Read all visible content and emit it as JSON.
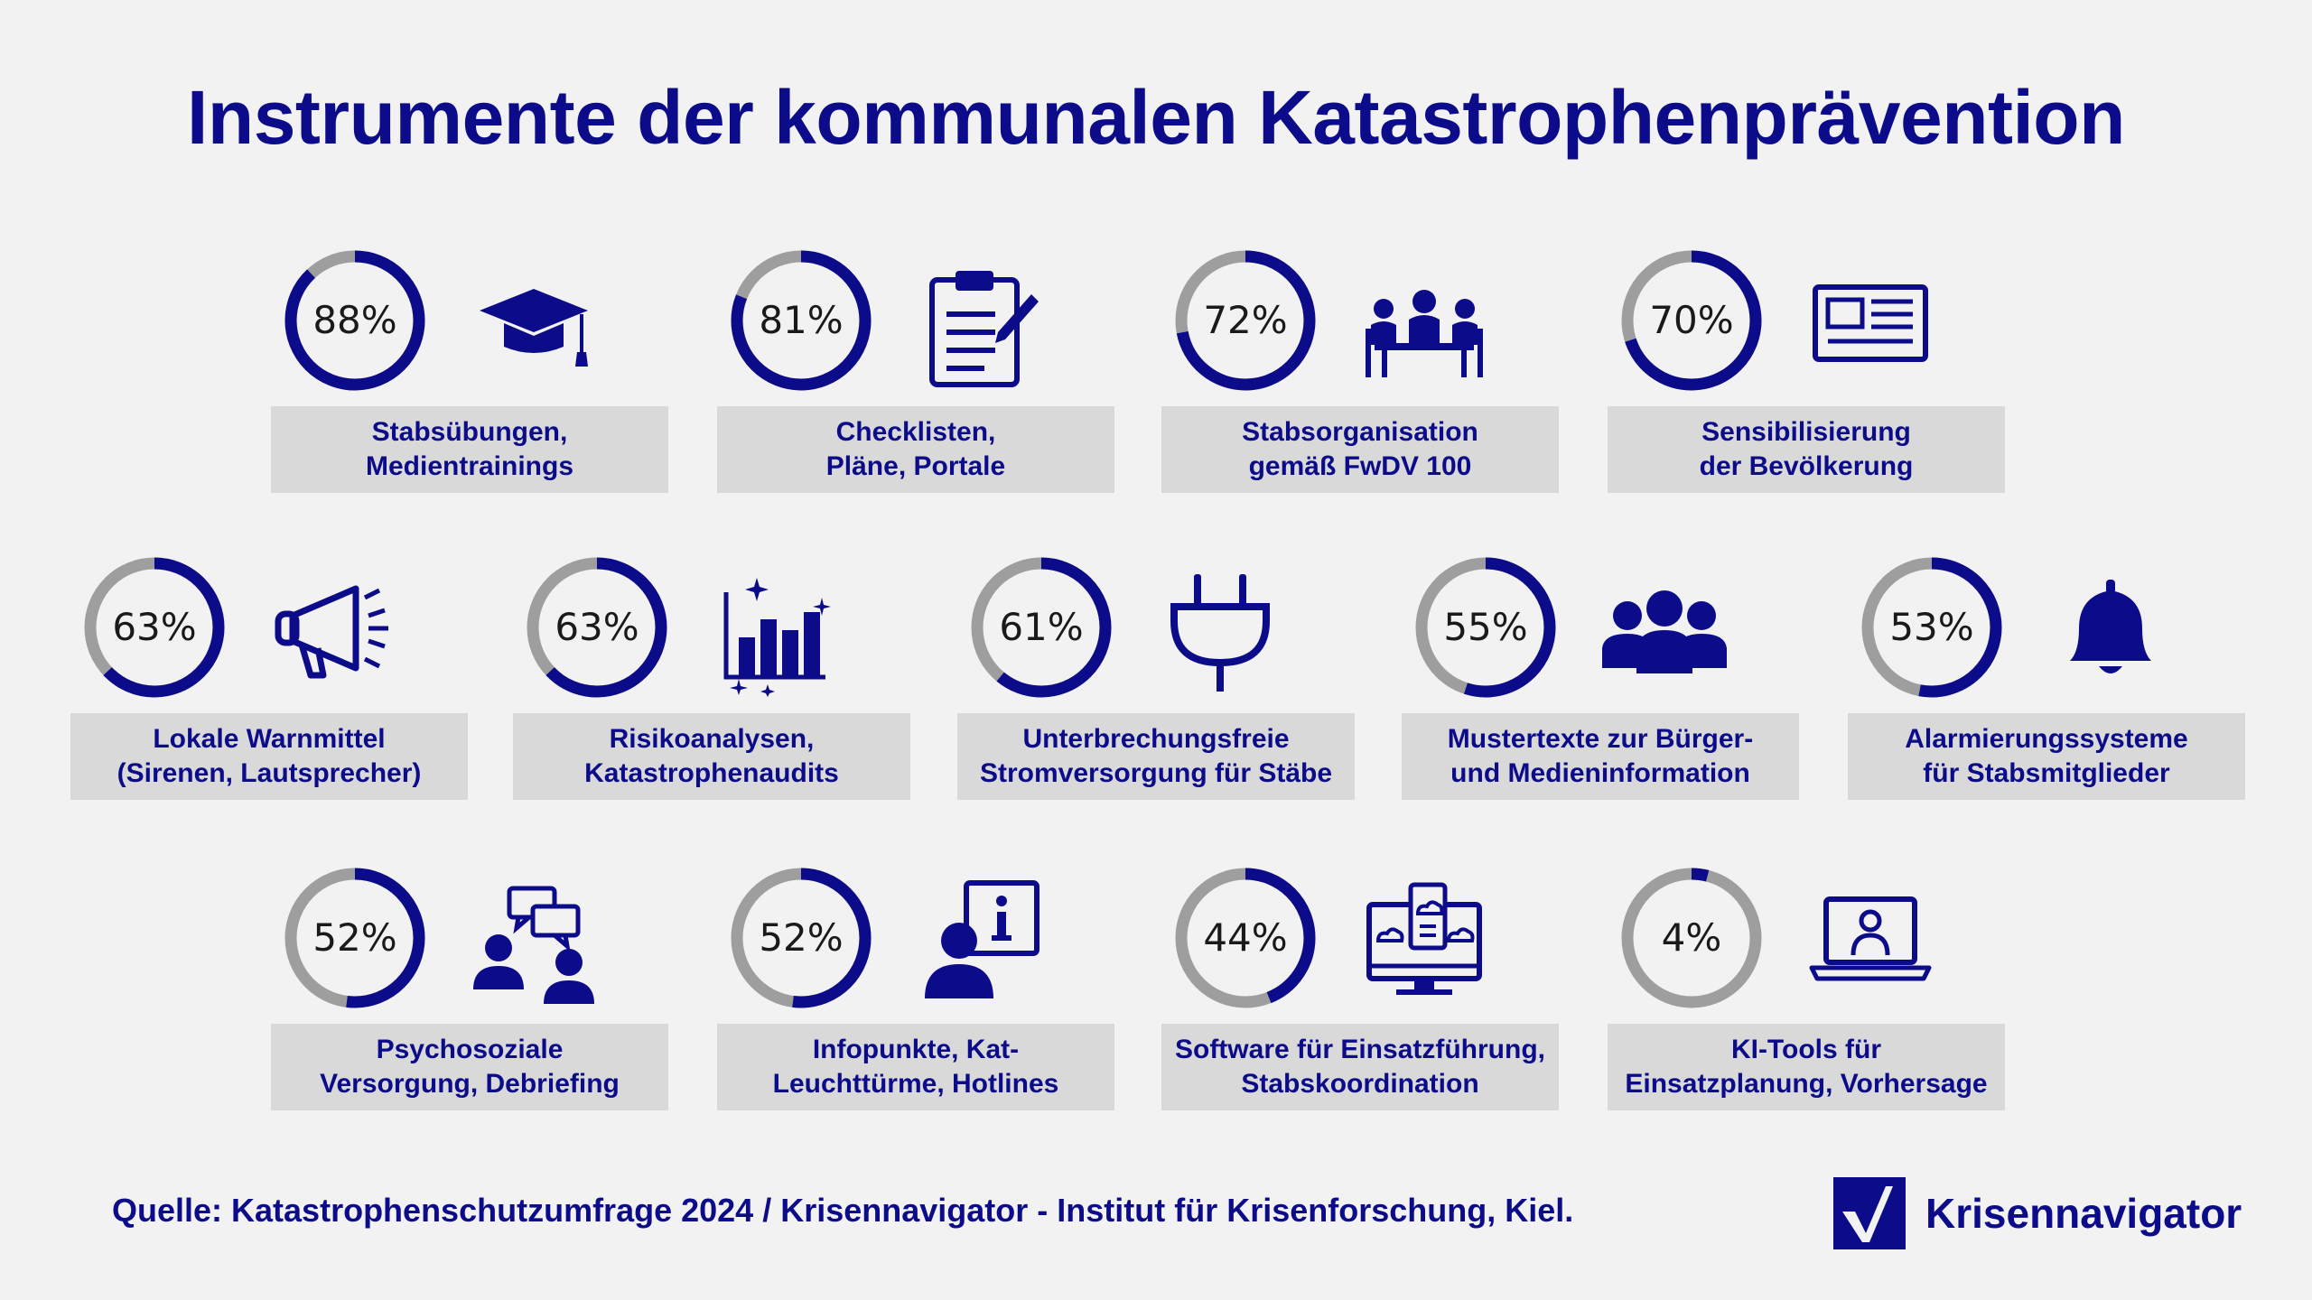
{
  "title": "Instrumente der kommunalen Katastrophenprävention",
  "source": "Quelle: Katastrophenschutzumfrage 2024 / Krisennavigator - Institut für Krisenforschung, Kiel.",
  "logo_text": "Krisennavigator",
  "colors": {
    "accent": "#0c0c8a",
    "ring_track": "#9e9e9e",
    "label_bg": "#d9d9d9",
    "background": "#f2f2f3"
  },
  "chart_data": {
    "type": "donut",
    "title": "Instrumente der kommunalen Katastrophenprävention",
    "unit": "%",
    "items": [
      {
        "value": 88,
        "value_label": "88%",
        "label": "Stabsübungen,\nMedientrainings",
        "icon": "graduation-cap-icon"
      },
      {
        "value": 81,
        "value_label": "81%",
        "label": "Checklisten,\nPläne, Portale",
        "icon": "clipboard-icon"
      },
      {
        "value": 72,
        "value_label": "72%",
        "label": "Stabsorganisation\ngemäß FwDV 100",
        "icon": "meeting-icon"
      },
      {
        "value": 70,
        "value_label": "70%",
        "label": "Sensibilisierung\nder Bevölkerung",
        "icon": "newspaper-icon"
      },
      {
        "value": 63,
        "value_label": "63%",
        "label": "Lokale Warnmittel\n(Sirenen, Lautsprecher)",
        "icon": "megaphone-icon"
      },
      {
        "value": 63,
        "value_label": "63%",
        "label": "Risikoanalysen,\nKatastrophenaudits",
        "icon": "bar-chart-icon"
      },
      {
        "value": 61,
        "value_label": "61%",
        "label": "Unterbrechungsfreie\nStromversorgung für Stäbe",
        "icon": "power-plug-icon"
      },
      {
        "value": 55,
        "value_label": "55%",
        "label": "Mustertexte zur Bürger-\nund Medieninformation",
        "icon": "group-icon"
      },
      {
        "value": 53,
        "value_label": "53%",
        "label": "Alarmierungssysteme\nfür Stabsmitglieder",
        "icon": "bell-icon"
      },
      {
        "value": 52,
        "value_label": "52%",
        "label": "Psychosoziale\nVersorgung, Debriefing",
        "icon": "conversation-icon"
      },
      {
        "value": 52,
        "value_label": "52%",
        "label": "Infopunkte, Kat-\nLeuchttürme, Hotlines",
        "icon": "info-person-icon"
      },
      {
        "value": 44,
        "value_label": "44%",
        "label": "Software für Einsatzführung,\nStabskoordination",
        "icon": "monitor-cloud-icon"
      },
      {
        "value": 4,
        "value_label": "4%",
        "label": "KI-Tools für\nEinsatzplanung, Vorhersage",
        "icon": "laptop-user-icon"
      }
    ]
  }
}
